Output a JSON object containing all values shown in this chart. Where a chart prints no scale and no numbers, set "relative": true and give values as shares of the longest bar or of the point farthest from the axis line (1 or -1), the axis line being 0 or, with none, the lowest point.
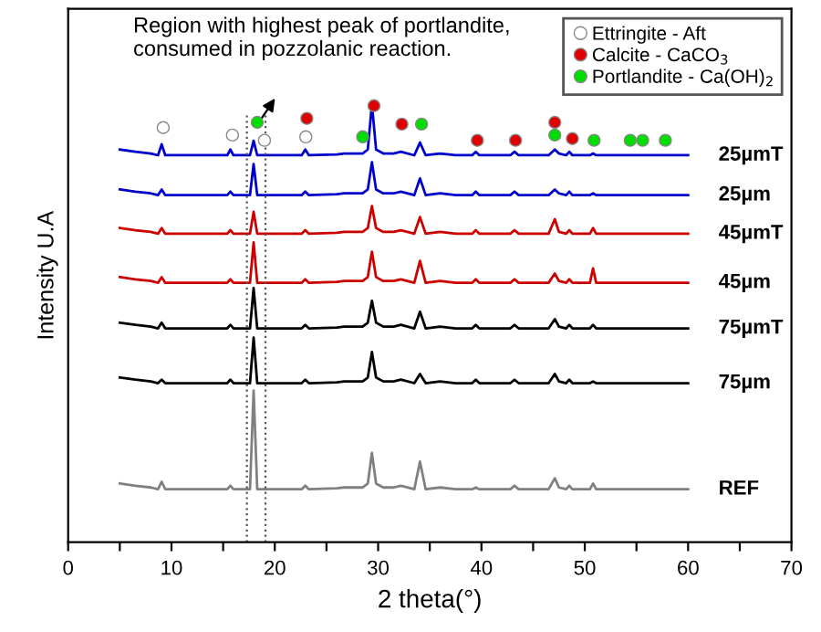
{
  "chart_data": {
    "type": "line",
    "relative": true,
    "xlabel": "2 theta(°)",
    "ylabel": "Intensity U.A",
    "xlim": [
      0,
      70
    ],
    "xticks": [
      0,
      {
        "value": 5,
        "label": null
      },
      10,
      {
        "value": 15,
        "label": null
      },
      20,
      {
        "value": 25,
        "label": null
      },
      30,
      {
        "value": 35,
        "label": null
      },
      40,
      {
        "value": 45,
        "label": null
      },
      50,
      {
        "value": 55,
        "label": null
      },
      60,
      {
        "value": 65,
        "label": null
      },
      70
    ],
    "tick_labels": "x",
    "legend": "top right",
    "grid": false,
    "x": [
      5,
      6.5,
      8,
      8.7,
      9.05,
      9.4,
      12,
      15.4,
      15.7,
      16,
      17.6,
      17.95,
      18.3,
      20.5,
      22.6,
      22.95,
      23.3,
      26,
      26.7,
      28.5,
      29.0,
      29.4,
      29.8,
      30.5,
      31.5,
      32.2,
      33.5,
      34.05,
      34.6,
      36,
      37.5,
      39.1,
      39.45,
      39.8,
      42.8,
      43.2,
      43.6,
      46.5,
      47.1,
      47.5,
      48.2,
      48.5,
      48.8,
      50.5,
      50.8,
      51.1,
      54,
      57,
      60
    ],
    "series": [
      {
        "name": "25µmT",
        "color": "#0000cc",
        "values": [
          0.896,
          0.891,
          0.887,
          0.883,
          0.908,
          0.883,
          0.883,
          0.883,
          0.896,
          0.883,
          0.883,
          0.916,
          0.883,
          0.883,
          0.883,
          0.896,
          0.883,
          0.885,
          0.887,
          0.887,
          0.896,
          1.0,
          0.896,
          0.887,
          0.887,
          0.891,
          0.883,
          0.912,
          0.883,
          0.887,
          0.883,
          0.883,
          0.891,
          0.883,
          0.883,
          0.891,
          0.883,
          0.883,
          0.896,
          0.887,
          0.883,
          0.891,
          0.883,
          0.883,
          0.887,
          0.883,
          0.883,
          0.883,
          0.883
        ]
      },
      {
        "name": "25µm",
        "color": "#0000cc",
        "values": [
          0.805,
          0.8,
          0.796,
          0.792,
          0.805,
          0.792,
          0.792,
          0.792,
          0.8,
          0.792,
          0.792,
          0.863,
          0.792,
          0.792,
          0.792,
          0.8,
          0.792,
          0.794,
          0.796,
          0.796,
          0.805,
          0.867,
          0.805,
          0.796,
          0.796,
          0.8,
          0.792,
          0.83,
          0.792,
          0.796,
          0.792,
          0.792,
          0.8,
          0.792,
          0.792,
          0.8,
          0.792,
          0.792,
          0.805,
          0.796,
          0.792,
          0.8,
          0.792,
          0.792,
          0.796,
          0.792,
          0.792,
          0.792,
          0.792
        ]
      },
      {
        "name": "45µmT",
        "color": "#cc0000",
        "values": [
          0.717,
          0.712,
          0.708,
          0.704,
          0.717,
          0.704,
          0.704,
          0.704,
          0.712,
          0.704,
          0.704,
          0.754,
          0.704,
          0.704,
          0.704,
          0.712,
          0.704,
          0.706,
          0.708,
          0.708,
          0.717,
          0.767,
          0.717,
          0.708,
          0.708,
          0.712,
          0.704,
          0.742,
          0.704,
          0.708,
          0.704,
          0.704,
          0.712,
          0.704,
          0.704,
          0.712,
          0.704,
          0.704,
          0.737,
          0.708,
          0.704,
          0.712,
          0.704,
          0.704,
          0.717,
          0.704,
          0.704,
          0.704,
          0.704
        ]
      },
      {
        "name": "45µm",
        "color": "#cc0000",
        "values": [
          0.605,
          0.6,
          0.596,
          0.592,
          0.605,
          0.592,
          0.592,
          0.592,
          0.6,
          0.592,
          0.592,
          0.684,
          0.592,
          0.592,
          0.592,
          0.6,
          0.592,
          0.594,
          0.596,
          0.596,
          0.605,
          0.663,
          0.605,
          0.596,
          0.596,
          0.6,
          0.592,
          0.642,
          0.592,
          0.596,
          0.592,
          0.592,
          0.6,
          0.592,
          0.592,
          0.6,
          0.592,
          0.592,
          0.613,
          0.596,
          0.592,
          0.6,
          0.592,
          0.592,
          0.625,
          0.592,
          0.592,
          0.592,
          0.592
        ]
      },
      {
        "name": "75µmT",
        "color": "#000000",
        "values": [
          0.501,
          0.496,
          0.492,
          0.488,
          0.501,
          0.488,
          0.488,
          0.488,
          0.496,
          0.488,
          0.488,
          0.58,
          0.488,
          0.488,
          0.488,
          0.496,
          0.488,
          0.49,
          0.492,
          0.492,
          0.501,
          0.551,
          0.501,
          0.492,
          0.492,
          0.496,
          0.488,
          0.526,
          0.488,
          0.492,
          0.488,
          0.488,
          0.496,
          0.488,
          0.488,
          0.496,
          0.488,
          0.488,
          0.509,
          0.492,
          0.488,
          0.496,
          0.488,
          0.488,
          0.496,
          0.488,
          0.488,
          0.488,
          0.488
        ]
      },
      {
        "name": "75µm",
        "color": "#000000",
        "values": [
          0.376,
          0.371,
          0.367,
          0.363,
          0.371,
          0.363,
          0.363,
          0.363,
          0.371,
          0.363,
          0.363,
          0.467,
          0.363,
          0.363,
          0.363,
          0.371,
          0.363,
          0.365,
          0.367,
          0.367,
          0.376,
          0.434,
          0.376,
          0.367,
          0.367,
          0.371,
          0.363,
          0.384,
          0.363,
          0.367,
          0.363,
          0.363,
          0.371,
          0.363,
          0.363,
          0.371,
          0.363,
          0.363,
          0.384,
          0.367,
          0.363,
          0.371,
          0.363,
          0.363,
          0.367,
          0.363,
          0.363,
          0.363,
          0.363
        ]
      },
      {
        "name": "REF",
        "color": "#808080",
        "values": [
          0.134,
          0.129,
          0.125,
          0.121,
          0.138,
          0.121,
          0.121,
          0.121,
          0.129,
          0.121,
          0.121,
          0.346,
          0.121,
          0.121,
          0.121,
          0.129,
          0.121,
          0.123,
          0.125,
          0.125,
          0.134,
          0.204,
          0.134,
          0.125,
          0.125,
          0.129,
          0.121,
          0.184,
          0.121,
          0.125,
          0.121,
          0.121,
          0.125,
          0.121,
          0.121,
          0.129,
          0.121,
          0.121,
          0.146,
          0.125,
          0.121,
          0.129,
          0.121,
          0.121,
          0.134,
          0.121,
          0.121,
          0.121,
          0.121
        ]
      },
      {
        "name": "Ettringite - Aft",
        "type": "scatter",
        "marker": "circle",
        "color": "#ffffff",
        "x": [
          9.2,
          15.9,
          19.0,
          23.0
        ],
        "values": [
          0.946,
          0.929,
          0.917,
          0.925
        ]
      },
      {
        "name": "Calcite - CaCO$_{3}$",
        "type": "scatter",
        "marker": "circle",
        "color": "#e00000",
        "x": [
          23.1,
          29.6,
          32.3,
          39.6,
          43.3,
          47.1,
          48.8
        ],
        "values": [
          0.967,
          0.996,
          0.954,
          0.917,
          0.917,
          0.958,
          0.921
        ]
      },
      {
        "name": "Portlandite - Ca(OH)$_{2}$",
        "type": "scatter",
        "marker": "circle",
        "color": "#00dd00",
        "x": [
          18.3,
          28.5,
          34.2,
          47.1,
          50.9,
          54.4,
          55.6,
          57.8
        ],
        "values": [
          0.958,
          0.925,
          0.954,
          0.929,
          0.917,
          0.917,
          0.917,
          0.917
        ]
      }
    ],
    "ref_lines": [
      {
        "axis": "x",
        "value": 17.3,
        "line_style": "dotted",
        "color": "#555555"
      },
      {
        "axis": "x",
        "value": 19.1,
        "line_style": "dotted",
        "color": "#555555"
      }
    ],
    "annotations": [
      "Region with highest peak of portlandite,\nconsumed in pozzolanic reaction."
    ]
  }
}
